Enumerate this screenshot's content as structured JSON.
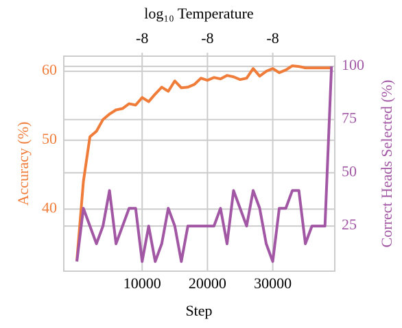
{
  "chart_data": {
    "type": "line",
    "xlabel": "Step",
    "ylabel": "Accuracy (%)",
    "y2label": "Correct Heads Selected (%)",
    "x2label": "log₁₀ Temperature",
    "x": [
      0,
      1000,
      2000,
      3000,
      4000,
      5000,
      6000,
      7000,
      8000,
      9000,
      10000,
      11000,
      12000,
      13000,
      14000,
      15000,
      16000,
      17000,
      18000,
      19000,
      20000,
      21000,
      22000,
      23000,
      24000,
      25000,
      26000,
      27000,
      28000,
      29000,
      30000,
      31000,
      32000,
      33000,
      34000,
      35000,
      36000,
      37000,
      38000,
      39000
    ],
    "series": [
      {
        "name": "Accuracy",
        "color": "#f07c3a",
        "values": [
          32.5,
          44,
          50.5,
          51.3,
          53,
          53.8,
          54.4,
          54.6,
          55.3,
          55.1,
          56.2,
          55.6,
          56.7,
          57.7,
          57.1,
          58.6,
          57.6,
          57.7,
          58.1,
          59,
          58.7,
          59.1,
          58.9,
          59.4,
          59.2,
          58.8,
          59,
          60.4,
          59.3,
          60,
          60.4,
          59.8,
          60.2,
          60.8,
          60.7,
          60.5,
          60.5,
          60.5,
          60.5,
          60.5
        ]
      },
      {
        "name": "Correct Heads Selected",
        "color": "#a257a5",
        "axis": "y2",
        "values": [
          8.33,
          33.33,
          25,
          16.67,
          25,
          41.67,
          16.67,
          25,
          33.33,
          33.33,
          8.33,
          25,
          8.33,
          16.67,
          33.33,
          25,
          8.33,
          25,
          25,
          25,
          25,
          25,
          33.33,
          16.67,
          41.67,
          33.33,
          25,
          41.67,
          33.33,
          16.67,
          8.33,
          33.33,
          33.33,
          41.67,
          41.67,
          16.67,
          25,
          25,
          25,
          100
        ]
      }
    ],
    "xlim": [
      -2000,
      39500
    ],
    "xticks": [
      10000,
      20000,
      30000
    ],
    "x2ticks": [
      {
        "value": 10000,
        "label": "-8"
      },
      {
        "value": 20000,
        "label": "-8"
      },
      {
        "value": 30000,
        "label": "-8"
      }
    ],
    "ylim": [
      31,
      62.2
    ],
    "yticks": [
      40,
      50,
      60
    ],
    "y2lim": [
      3.8,
      104.8
    ],
    "y2ticks": [
      25,
      50,
      75,
      100
    ],
    "grid": true
  }
}
